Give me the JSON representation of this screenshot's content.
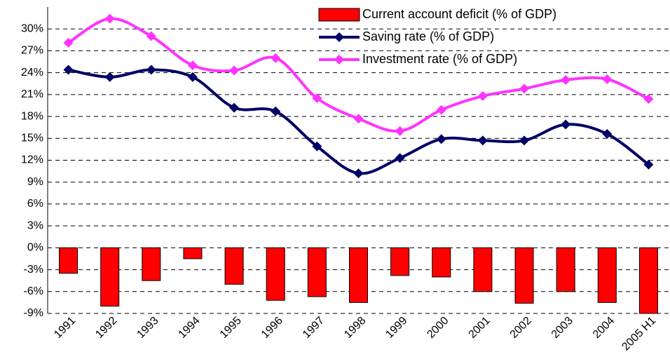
{
  "chart_data": {
    "type": "bar-line",
    "categories": [
      "1991",
      "1992",
      "1993",
      "1994",
      "1995",
      "1996",
      "1997",
      "1998",
      "1999",
      "2000",
      "2001",
      "2002",
      "2003",
      "2004",
      "2005 H1"
    ],
    "series": [
      {
        "name": "Current account deficit (% of GDP)",
        "type": "bar",
        "color": "#ff0000",
        "values": [
          -3.5,
          -8,
          -4.5,
          -1.5,
          -5,
          -7.2,
          -6.7,
          -7.5,
          -3.8,
          -4,
          -6,
          -7.6,
          -6,
          -7.5,
          -9
        ]
      },
      {
        "name": "Saving rate (% of GDP)",
        "type": "line",
        "color": "#000066",
        "values": [
          24.4,
          23.4,
          24.4,
          23.4,
          19.2,
          18.7,
          13.9,
          10.2,
          12.3,
          14.9,
          14.7,
          14.7,
          16.9,
          15.6,
          11.4
        ]
      },
      {
        "name": "Investment rate (% of GDP)",
        "type": "line",
        "color": "#ff33ff",
        "values": [
          28.1,
          31.4,
          29,
          25,
          24.3,
          26,
          20.5,
          17.7,
          16,
          18.9,
          20.8,
          21.8,
          23,
          23.1,
          20.4
        ]
      }
    ],
    "ylim": [
      -9,
      33
    ],
    "yticks": [
      {
        "value": -9,
        "label": "-9%"
      },
      {
        "value": -6,
        "label": "-6%"
      },
      {
        "value": -3,
        "label": "-3%"
      },
      {
        "value": 0,
        "label": "0%"
      },
      {
        "value": 3,
        "label": "3%"
      },
      {
        "value": 6,
        "label": "6%"
      },
      {
        "value": 9,
        "label": "9%"
      },
      {
        "value": 12,
        "label": "12%"
      },
      {
        "value": 15,
        "label": "15%"
      },
      {
        "value": 18,
        "label": "18%"
      },
      {
        "value": 21,
        "label": "21%"
      },
      {
        "value": 24,
        "label": "24%"
      },
      {
        "value": 27,
        "label": "27%"
      },
      {
        "value": 30,
        "label": "30%"
      }
    ],
    "grid": true,
    "legend": "top-right"
  }
}
